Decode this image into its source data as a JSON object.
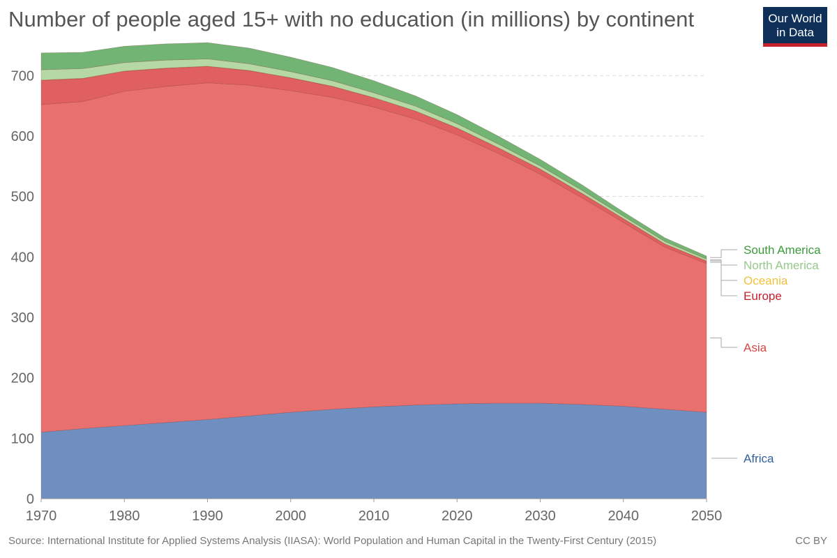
{
  "title": "Number of people aged 15+ with no education (in millions) by continent",
  "logo": {
    "line1": "Our World",
    "line2": "in Data"
  },
  "source": "Source: International Institute for Applied Systems Analysis (IIASA): World Population and Human Capital in the Twenty-First Century (2015)",
  "license": "CC BY",
  "chart_data": {
    "type": "area",
    "stacked": true,
    "x": [
      1970,
      1975,
      1980,
      1985,
      1990,
      1995,
      2000,
      2005,
      2010,
      2015,
      2020,
      2025,
      2030,
      2035,
      2040,
      2045,
      2050
    ],
    "series": [
      {
        "name": "Africa",
        "color": "#6f8fc1",
        "values": [
          110,
          116,
          121,
          126,
          131,
          137,
          143,
          148,
          152,
          155,
          157,
          158,
          158,
          156,
          153,
          148,
          143
        ]
      },
      {
        "name": "Asia",
        "color": "#e8706e",
        "values": [
          542,
          541,
          553,
          556,
          557,
          547,
          532,
          516,
          496,
          473,
          445,
          413,
          379,
          342,
          304,
          268,
          246
        ]
      },
      {
        "name": "Europe",
        "color": "#e05f61",
        "values": [
          40,
          38,
          33,
          30,
          27,
          24,
          21,
          18,
          15,
          13,
          11,
          9,
          8,
          7,
          6,
          5,
          4
        ]
      },
      {
        "name": "Oceania",
        "color": "#f2c94c",
        "values": [
          0.5,
          0.5,
          0.5,
          0.5,
          0.5,
          0.5,
          0.5,
          0.5,
          0.5,
          0.5,
          0.5,
          0.5,
          0.5,
          0.5,
          0.5,
          0.5,
          0.5
        ]
      },
      {
        "name": "North America",
        "color": "#b6d8a4",
        "values": [
          17,
          16,
          14,
          13,
          12,
          11,
          10,
          9,
          8,
          8,
          7,
          6,
          5,
          5,
          4,
          4,
          3
        ]
      },
      {
        "name": "South America",
        "color": "#72b474",
        "values": [
          28,
          27,
          27,
          27,
          27,
          26,
          24,
          22,
          20,
          17,
          15,
          13,
          11,
          9,
          7,
          6,
          5
        ]
      }
    ],
    "legend_colors": {
      "South America": "#3c9a3c",
      "North America": "#96c98a",
      "Oceania": "#efc23e",
      "Europe": "#c6202d",
      "Asia": "#d64545",
      "Africa": "#2f5f9e"
    },
    "ylim": [
      0,
      750
    ],
    "yticks": [
      0,
      100,
      200,
      300,
      400,
      500,
      600,
      700
    ],
    "xticks": [
      1970,
      1980,
      1990,
      2000,
      2010,
      2020,
      2030,
      2040,
      2050
    ],
    "xlim": [
      1970,
      2050
    ],
    "grid": "horizontal-dashed",
    "legend": "right, labels at series end"
  }
}
